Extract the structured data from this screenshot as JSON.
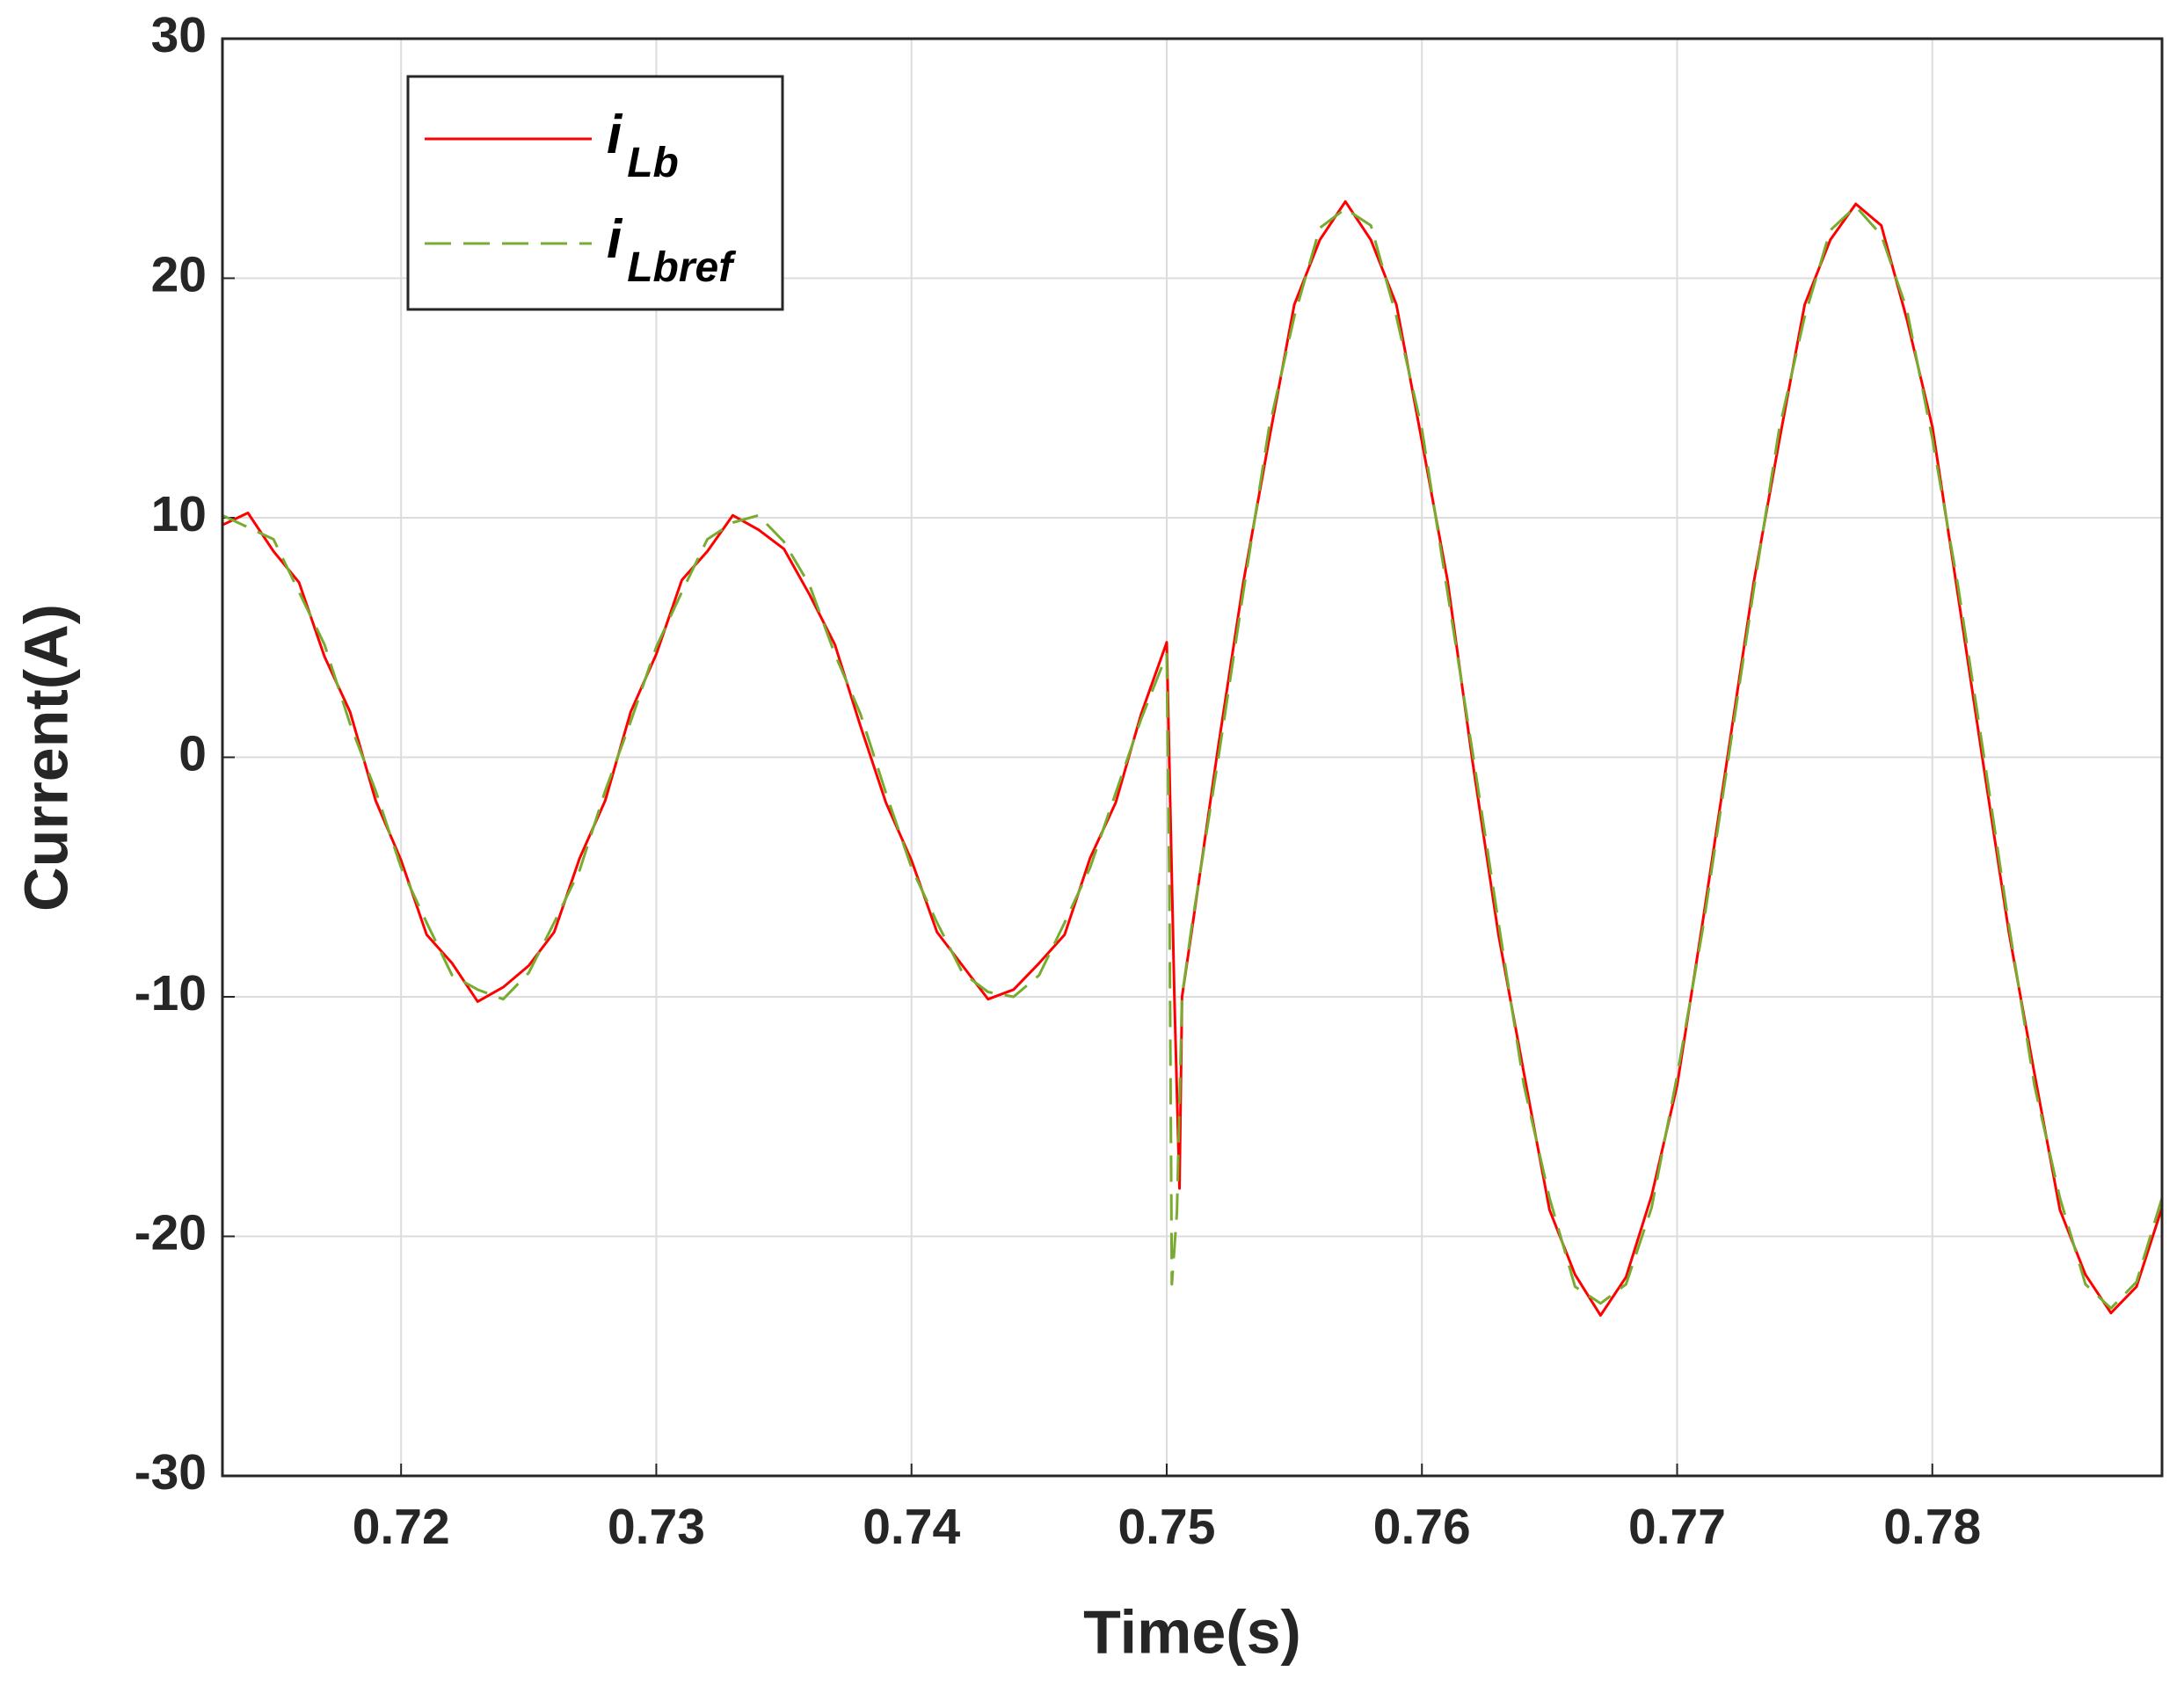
{
  "chart_data": {
    "type": "line",
    "xlabel": "Time(s)",
    "ylabel": "Current(A)",
    "xlim": [
      0.713,
      0.789
    ],
    "xticks": [
      0.72,
      0.73,
      0.74,
      0.75,
      0.76,
      0.77,
      0.78
    ],
    "ylim": [
      -30,
      30
    ],
    "yticks": [
      -30,
      -20,
      -10,
      0,
      10,
      20,
      30
    ],
    "grid": true,
    "series": [
      {
        "name": "iLb",
        "color": "#ff0000",
        "dash": false,
        "x": [
          0.713,
          0.714,
          0.715,
          0.716,
          0.717,
          0.718,
          0.719,
          0.72,
          0.721,
          0.722,
          0.723,
          0.724,
          0.725,
          0.726,
          0.727,
          0.728,
          0.729,
          0.73,
          0.731,
          0.732,
          0.733,
          0.734,
          0.735,
          0.736,
          0.737,
          0.738,
          0.739,
          0.74,
          0.741,
          0.742,
          0.743,
          0.744,
          0.745,
          0.746,
          0.747,
          0.748,
          0.749,
          0.75,
          0.7503,
          0.7505,
          0.7506,
          0.751,
          0.752,
          0.753,
          0.754,
          0.755,
          0.756,
          0.757,
          0.758,
          0.759,
          0.76,
          0.761,
          0.762,
          0.763,
          0.764,
          0.765,
          0.766,
          0.767,
          0.768,
          0.769,
          0.77,
          0.771,
          0.772,
          0.773,
          0.774,
          0.775,
          0.776,
          0.777,
          0.778,
          0.779,
          0.78,
          0.781,
          0.782,
          0.783,
          0.784,
          0.785,
          0.786,
          0.787,
          0.788,
          0.789
        ],
        "values": [
          9.7,
          10.2,
          8.6,
          7.3,
          4.2,
          1.9,
          -1.8,
          -4.3,
          -7.4,
          -8.6,
          -10.2,
          -9.6,
          -8.7,
          -7.3,
          -4.2,
          -1.8,
          1.9,
          4.3,
          7.4,
          8.6,
          10.1,
          9.5,
          8.7,
          6.8,
          4.7,
          1.3,
          -1.9,
          -4.3,
          -7.3,
          -8.7,
          -10.1,
          -9.7,
          -8.6,
          -7.4,
          -4.2,
          -1.9,
          1.8,
          4.8,
          -10,
          -18,
          -10,
          -7.1,
          0.3,
          7.3,
          13.2,
          18.9,
          21.6,
          23.2,
          21.6,
          18.9,
          13.2,
          7.4,
          -0.3,
          -7.4,
          -13.2,
          -18.9,
          -21.6,
          -23.3,
          -21.7,
          -18.3,
          -13.7,
          -6.9,
          0.2,
          7.3,
          13.2,
          18.9,
          21.6,
          23.1,
          22.2,
          18.3,
          13.8,
          6.8,
          -0.3,
          -7.3,
          -13.2,
          -18.9,
          -21.6,
          -23.2,
          -22.1,
          -18.8
        ]
      },
      {
        "name": "iLbref",
        "color": "#77ac30",
        "dash": true,
        "x": [
          0.713,
          0.714,
          0.715,
          0.716,
          0.717,
          0.718,
          0.719,
          0.72,
          0.721,
          0.722,
          0.723,
          0.724,
          0.725,
          0.726,
          0.727,
          0.728,
          0.729,
          0.73,
          0.731,
          0.732,
          0.733,
          0.734,
          0.735,
          0.736,
          0.737,
          0.738,
          0.739,
          0.74,
          0.741,
          0.742,
          0.743,
          0.744,
          0.745,
          0.746,
          0.747,
          0.748,
          0.749,
          0.75,
          0.7501,
          0.7502,
          0.7504,
          0.7506,
          0.751,
          0.752,
          0.753,
          0.754,
          0.755,
          0.756,
          0.757,
          0.758,
          0.759,
          0.76,
          0.761,
          0.762,
          0.763,
          0.764,
          0.765,
          0.766,
          0.767,
          0.768,
          0.769,
          0.77,
          0.771,
          0.772,
          0.773,
          0.774,
          0.775,
          0.776,
          0.777,
          0.778,
          0.779,
          0.78,
          0.781,
          0.782,
          0.783,
          0.784,
          0.785,
          0.786,
          0.787,
          0.788,
          0.789
        ],
        "values": [
          10.1,
          9.6,
          9.1,
          6.9,
          4.7,
          1.4,
          -1.4,
          -4.6,
          -6.9,
          -9.1,
          -9.7,
          -10.1,
          -9.0,
          -6.9,
          -4.7,
          -1.4,
          1.5,
          4.6,
          6.9,
          9.1,
          9.8,
          10.1,
          9.0,
          7.2,
          4.3,
          1.8,
          -1.5,
          -4.6,
          -6.9,
          -9.0,
          -9.8,
          -10.0,
          -9.1,
          -6.9,
          -4.6,
          -1.5,
          1.6,
          4.3,
          -5,
          -22,
          -19,
          -10,
          -6.9,
          -0.2,
          6.9,
          13.7,
          18.4,
          22.1,
          22.9,
          22.2,
          18.4,
          13.7,
          6.9,
          0.1,
          -6.9,
          -13.7,
          -18.4,
          -22.1,
          -22.8,
          -22.0,
          -18.8,
          -13.3,
          -7.2,
          -0.1,
          7.0,
          13.7,
          18.4,
          22.0,
          23.0,
          21.8,
          18.7,
          13.3,
          7.2,
          0.2,
          -7.0,
          -13.7,
          -18.4,
          -22.0,
          -23.0,
          -21.9,
          -18.4
        ]
      }
    ]
  }
}
